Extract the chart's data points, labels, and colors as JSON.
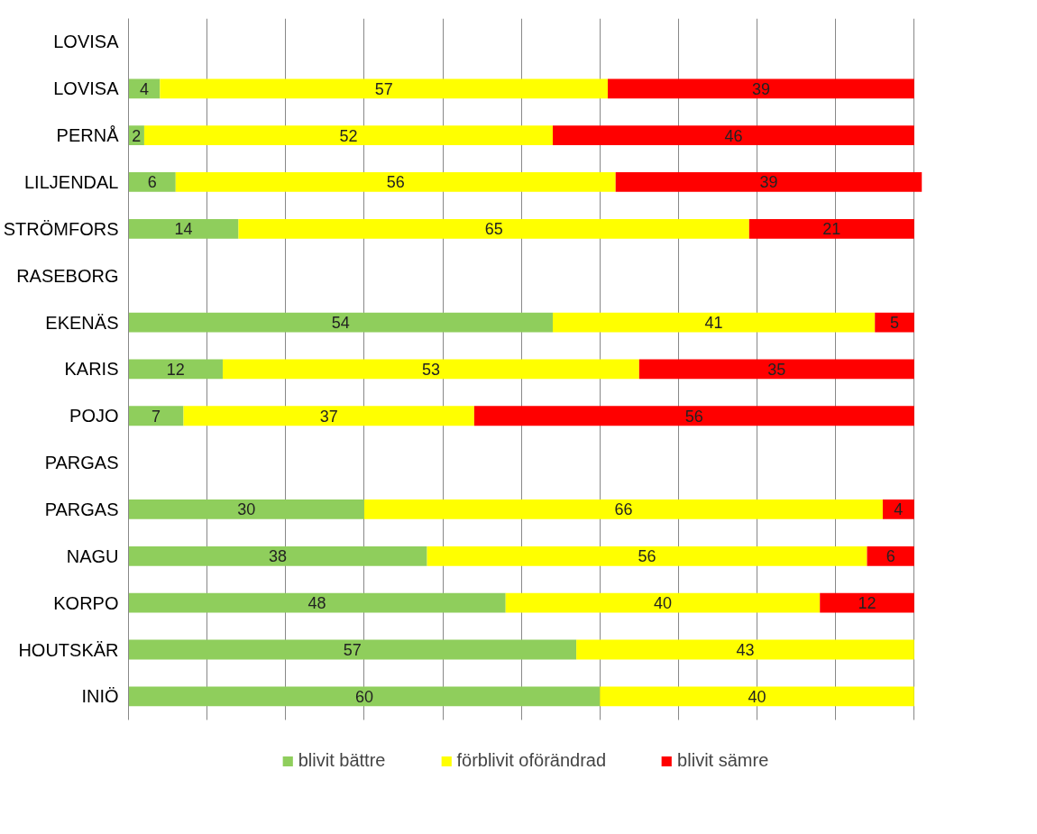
{
  "chart_data": {
    "type": "bar",
    "orientation": "horizontal",
    "stacked": true,
    "data_labels": true,
    "grid": "x",
    "legend": "bottom",
    "tick_labels": "y",
    "categories": [
      "LOVISA",
      "LOVISA",
      "PERNÅ",
      "LILJENDAL",
      "STRÖMFORS",
      "RASEBORG",
      "EKENÄS",
      "KARIS",
      "POJO",
      "PARGAS",
      "PARGAS",
      "NAGU",
      "KORPO",
      "HOUTSKÄR",
      "INIÖ"
    ],
    "xlim": [
      0,
      101
    ],
    "xticks": [
      {
        "value": 0,
        "label": null
      },
      {
        "value": 10,
        "label": null
      },
      {
        "value": 20,
        "label": null
      },
      {
        "value": 30,
        "label": null
      },
      {
        "value": 40,
        "label": null
      },
      {
        "value": 50,
        "label": null
      },
      {
        "value": 60,
        "label": null
      },
      {
        "value": 70,
        "label": null
      },
      {
        "value": 80,
        "label": null
      },
      {
        "value": 90,
        "label": null
      },
      {
        "value": 100,
        "label": null
      }
    ],
    "series": [
      {
        "name": "blivit bättre",
        "color": "#8fce5c",
        "values": [
          null,
          4,
          2,
          6,
          14,
          null,
          54,
          12,
          7,
          null,
          30,
          38,
          48,
          57,
          60
        ]
      },
      {
        "name": "förblivit oförändrad",
        "color": "#ffff00",
        "values": [
          null,
          57,
          52,
          56,
          65,
          null,
          41,
          53,
          37,
          null,
          66,
          56,
          40,
          43,
          40
        ]
      },
      {
        "name": "blivit sämre",
        "color": "#ff0000",
        "values": [
          null,
          39,
          46,
          39,
          21,
          null,
          5,
          35,
          56,
          null,
          4,
          6,
          12,
          null,
          null
        ]
      }
    ]
  }
}
